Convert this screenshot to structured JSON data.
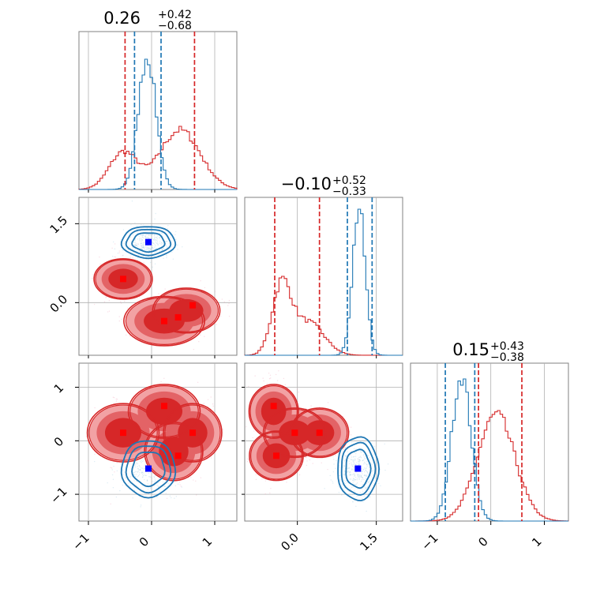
{
  "chart_data": {
    "type": "corner",
    "colors": {
      "red": "#d62728",
      "blue": "#1f77b4",
      "red_fill_light": "#f2a2a4",
      "marker_red": "#ff0000",
      "marker_blue": "#0000ff"
    },
    "parameters": [
      {
        "index": 0,
        "range": [
          -1.15,
          1.35
        ],
        "ticks": [
          -1,
          0,
          1
        ],
        "tick_labels": [
          "−1",
          "0",
          "1"
        ],
        "title": {
          "median": "0.26",
          "plus": "+0.42",
          "minus": "−0.68"
        },
        "red_quantiles": [
          -0.42,
          0.68
        ],
        "blue_quantiles": [
          -0.27,
          0.15
        ]
      },
      {
        "index": 1,
        "range": [
          -1.0,
          2.0
        ],
        "ticks": [
          0.0,
          1.5
        ],
        "tick_labels": [
          "0.0",
          "1.5"
        ],
        "title": {
          "median": "−0.10",
          "plus": "+0.52",
          "minus": "−0.33"
        },
        "red_quantiles": [
          -0.43,
          0.42
        ],
        "blue_quantiles": [
          0.95,
          1.42
        ]
      },
      {
        "index": 2,
        "range": [
          -1.5,
          1.45
        ],
        "ticks": [
          -1,
          0,
          1
        ],
        "tick_labels": [
          "−1",
          "0",
          "1"
        ],
        "title": {
          "median": "0.15",
          "plus": "+0.43",
          "minus": "−0.38"
        },
        "red_quantiles": [
          -0.23,
          0.58
        ],
        "blue_quantiles": [
          -0.85,
          -0.3
        ]
      }
    ],
    "red_markers": {
      "p0_p1": [
        [
          -0.45,
          0.45
        ],
        [
          0.2,
          -0.35
        ],
        [
          0.42,
          -0.28
        ],
        [
          0.65,
          -0.05
        ]
      ],
      "p0_p2": [
        [
          -0.45,
          0.15
        ],
        [
          0.2,
          0.65
        ],
        [
          0.42,
          -0.28
        ],
        [
          0.65,
          0.15
        ]
      ],
      "p1_p2": [
        [
          -0.45,
          0.65
        ],
        [
          -0.05,
          0.15
        ],
        [
          0.42,
          0.15
        ],
        [
          -0.4,
          -0.28
        ]
      ]
    },
    "blue_markers": {
      "p0_p1": [
        [
          -0.05,
          1.15
        ]
      ],
      "p0_p2": [
        [
          -0.05,
          -0.52
        ]
      ],
      "p1_p2": [
        [
          1.15,
          -0.52
        ]
      ]
    },
    "grid": true,
    "legend": "none"
  }
}
